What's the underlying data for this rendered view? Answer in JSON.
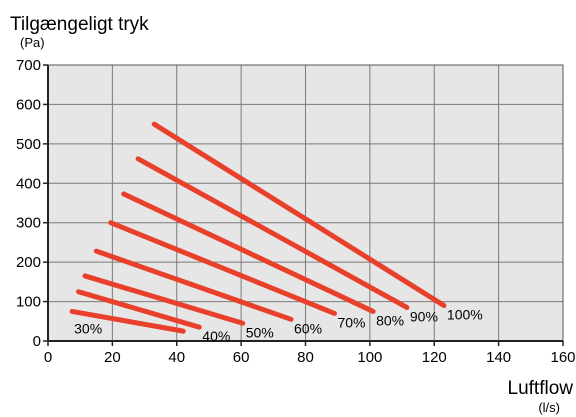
{
  "chart_data": {
    "type": "line",
    "title": "Tilgængeligt tryk",
    "ylabel": "Tilgængeligt tryk",
    "yunit": "(Pa)",
    "xlabel": "Luftflow",
    "xunit": "(l/s)",
    "xlim": [
      0,
      160
    ],
    "ylim": [
      0,
      700
    ],
    "xticks": [
      "0",
      "20",
      "40",
      "60",
      "80",
      "100",
      "120",
      "140",
      "160"
    ],
    "yticks": [
      "0",
      "100",
      "200",
      "300",
      "400",
      "500",
      "600",
      "700"
    ],
    "grid": true,
    "line_color": "#e8402a",
    "series": [
      {
        "name": "30%",
        "points": [
          [
            7.5,
            75
          ],
          [
            42,
            25
          ]
        ]
      },
      {
        "name": "40%",
        "points": [
          [
            9.5,
            125
          ],
          [
            47,
            35
          ]
        ]
      },
      {
        "name": "50%",
        "points": [
          [
            11.5,
            165
          ],
          [
            60.5,
            45
          ]
        ]
      },
      {
        "name": "60%",
        "points": [
          [
            15,
            228
          ],
          [
            75.5,
            55
          ]
        ]
      },
      {
        "name": "70%",
        "points": [
          [
            19.5,
            300
          ],
          [
            89,
            70
          ]
        ]
      },
      {
        "name": "80%",
        "points": [
          [
            23.5,
            373
          ],
          [
            101,
            75
          ]
        ]
      },
      {
        "name": "90%",
        "points": [
          [
            28,
            462
          ],
          [
            111.5,
            85
          ]
        ]
      },
      {
        "name": "100%",
        "points": [
          [
            33,
            550
          ],
          [
            123,
            90
          ]
        ]
      }
    ]
  }
}
